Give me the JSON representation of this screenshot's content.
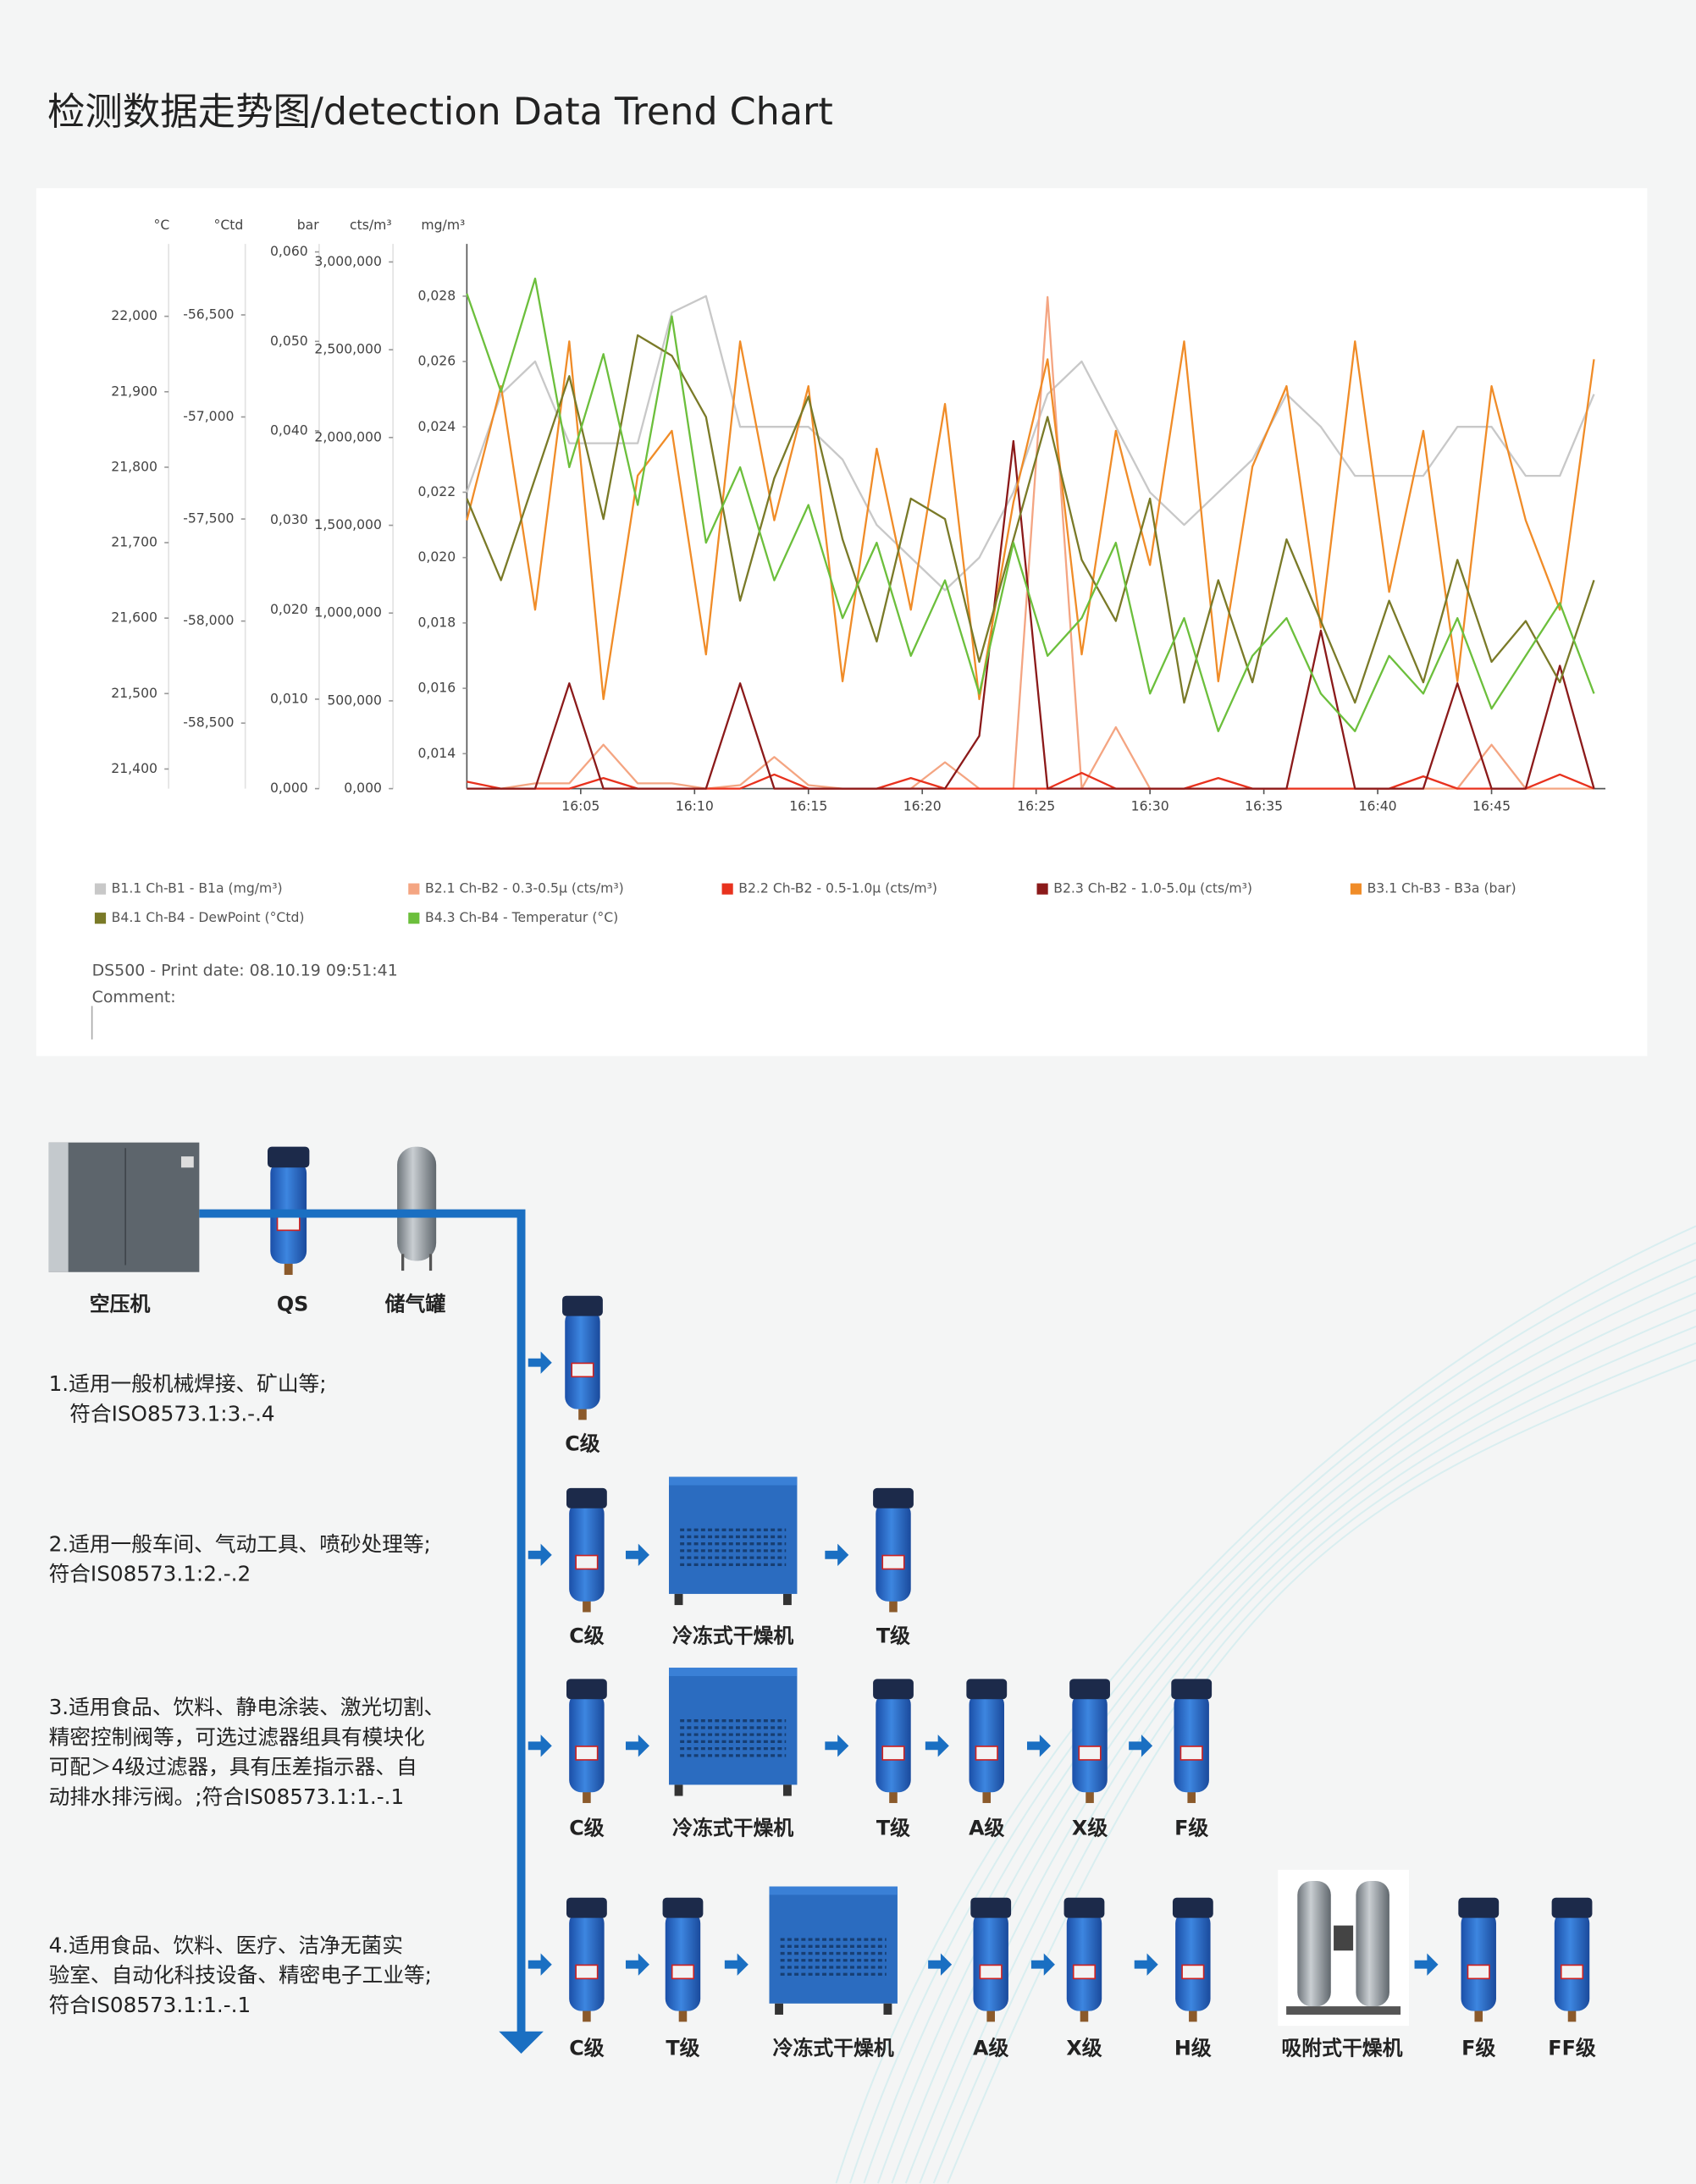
{
  "title": "检测数据走势图/detection Data Trend Chart",
  "chart_data": {
    "type": "line",
    "x": [
      960,
      961.5,
      963,
      964.5,
      966,
      967.5,
      969,
      970.5,
      972,
      973.5,
      975,
      976.5,
      978,
      979.5,
      981,
      982.5,
      984,
      985.5,
      987,
      988.5,
      990,
      991.5,
      993,
      994.5,
      996,
      997.5,
      999,
      1000.5,
      1002,
      1003.5,
      1005,
      1006.5,
      1008,
      1009.5
    ],
    "xlim": [
      960,
      1010
    ],
    "xticks": [
      {
        "value": 965,
        "label": "16:05"
      },
      {
        "value": 970,
        "label": "16:10"
      },
      {
        "value": 975,
        "label": "16:15"
      },
      {
        "value": 980,
        "label": "16:20"
      },
      {
        "value": 985,
        "label": "16:25"
      },
      {
        "value": 990,
        "label": "16:30"
      },
      {
        "value": 995,
        "label": "16:35"
      },
      {
        "value": 1000,
        "label": "16:40"
      },
      {
        "value": 1005,
        "label": "16:45"
      }
    ],
    "axes": [
      {
        "unit": "°C",
        "lim": [
          21.374,
          22.096
        ],
        "ticks": [
          {
            "value": 21.4,
            "label": "21,400"
          },
          {
            "value": 21.5,
            "label": "21,500"
          },
          {
            "value": 21.6,
            "label": "21,600"
          },
          {
            "value": 21.7,
            "label": "21,700"
          },
          {
            "value": 21.8,
            "label": "21,800"
          },
          {
            "value": 21.9,
            "label": "21,900"
          },
          {
            "value": 22.0,
            "label": "22,000"
          }
        ]
      },
      {
        "unit": "°Ctd",
        "lim": [
          -58.821,
          -56.152
        ],
        "ticks": [
          {
            "value": -58.5,
            "label": "-58,500"
          },
          {
            "value": -58.0,
            "label": "-58,000"
          },
          {
            "value": -57.5,
            "label": "-57,500"
          },
          {
            "value": -57.0,
            "label": "-57,000"
          },
          {
            "value": -56.5,
            "label": "-56,500"
          }
        ]
      },
      {
        "unit": "bar",
        "lim": [
          0,
          0.0609
        ],
        "ticks": [
          {
            "value": 0,
            "label": "0,000"
          },
          {
            "value": 0.01,
            "label": "0,010"
          },
          {
            "value": 0.02,
            "label": "0,020"
          },
          {
            "value": 0.03,
            "label": "0,030"
          },
          {
            "value": 0.04,
            "label": "0,040"
          },
          {
            "value": 0.05,
            "label": "0,050"
          },
          {
            "value": 0.06,
            "label": "0,060"
          }
        ]
      },
      {
        "unit": "cts/m³",
        "lim": [
          0,
          3103
        ],
        "ticks": [
          {
            "value": 0,
            "label": "0,000"
          },
          {
            "value": 500,
            "label": "500,000"
          },
          {
            "value": 1000,
            "label": "1,000,000"
          },
          {
            "value": 1500,
            "label": "1,500,000"
          },
          {
            "value": 2000,
            "label": "2,000,000"
          },
          {
            "value": 2500,
            "label": "2,500,000"
          },
          {
            "value": 3000,
            "label": "3,000,000"
          }
        ]
      },
      {
        "unit": "mg/m³",
        "lim": [
          0.01293,
          0.0296
        ],
        "ticks": [
          {
            "value": 0.014,
            "label": "0,014"
          },
          {
            "value": 0.016,
            "label": "0,016"
          },
          {
            "value": 0.018,
            "label": "0,018"
          },
          {
            "value": 0.02,
            "label": "0,020"
          },
          {
            "value": 0.022,
            "label": "0,022"
          },
          {
            "value": 0.024,
            "label": "0,024"
          },
          {
            "value": 0.026,
            "label": "0,026"
          },
          {
            "value": 0.028,
            "label": "0,028"
          }
        ]
      }
    ],
    "series": [
      {
        "name": "B1.1 Ch-B1 - B1a (mg/m³)",
        "color": "#c8c8c8",
        "axis": 4,
        "values": [
          0.022,
          0.025,
          0.026,
          0.0235,
          0.0235,
          0.0235,
          0.0275,
          0.028,
          0.024,
          0.024,
          0.024,
          0.023,
          0.021,
          0.02,
          0.019,
          0.02,
          0.022,
          0.025,
          0.026,
          0.024,
          0.022,
          0.021,
          0.022,
          0.023,
          0.025,
          0.024,
          0.0225,
          0.0225,
          0.0225,
          0.024,
          0.024,
          0.0225,
          0.0225,
          0.025
        ]
      },
      {
        "name": "B2.1 Ch-B2 - 0.3-0.5µ (cts/m³)",
        "color": "#f4a582",
        "axis": 3,
        "values": [
          0,
          0,
          30,
          30,
          250,
          30,
          30,
          0,
          20,
          180,
          20,
          0,
          0,
          0,
          150,
          0,
          0,
          2800,
          0,
          350,
          0,
          0,
          0,
          0,
          0,
          0,
          0,
          0,
          0,
          0,
          250,
          0,
          0,
          0
        ]
      },
      {
        "name": "B2.2 Ch-B2 - 0.5-1.0µ (cts/m³)",
        "color": "#e8321e",
        "axis": 3,
        "values": [
          40,
          0,
          0,
          0,
          60,
          0,
          0,
          0,
          0,
          80,
          0,
          0,
          0,
          60,
          0,
          0,
          0,
          0,
          90,
          0,
          0,
          0,
          60,
          0,
          0,
          0,
          0,
          0,
          70,
          0,
          0,
          0,
          80,
          0
        ]
      },
      {
        "name": "B2.3 Ch-B2 - 1.0-5.0µ (cts/m³)",
        "color": "#8b1a1a",
        "axis": 3,
        "values": [
          0,
          0,
          0,
          600,
          0,
          0,
          0,
          0,
          600,
          0,
          0,
          0,
          0,
          0,
          0,
          300,
          1980,
          0,
          0,
          0,
          0,
          0,
          0,
          0,
          0,
          900,
          0,
          0,
          0,
          600,
          0,
          0,
          700,
          0
        ]
      },
      {
        "name": "B3.1 Ch-B3 - B3a (bar)",
        "color": "#f08c28",
        "axis": 2,
        "values": [
          0.03,
          0.045,
          0.02,
          0.05,
          0.01,
          0.035,
          0.04,
          0.015,
          0.05,
          0.03,
          0.045,
          0.012,
          0.038,
          0.02,
          0.043,
          0.01,
          0.032,
          0.048,
          0.015,
          0.04,
          0.025,
          0.05,
          0.012,
          0.036,
          0.045,
          0.018,
          0.05,
          0.022,
          0.04,
          0.012,
          0.045,
          0.03,
          0.02,
          0.048
        ]
      },
      {
        "name": "B4.1 Ch-B4 - DewPoint (°Ctd)",
        "color": "#7a7a28",
        "axis": 1,
        "values": [
          -57.4,
          -57.8,
          -57.3,
          -56.8,
          -57.5,
          -56.6,
          -56.7,
          -57.0,
          -57.9,
          -57.3,
          -56.9,
          -57.6,
          -58.1,
          -57.4,
          -57.5,
          -58.2,
          -57.6,
          -57.0,
          -57.7,
          -58.0,
          -57.4,
          -58.4,
          -57.8,
          -58.3,
          -57.6,
          -58.0,
          -58.4,
          -57.9,
          -58.3,
          -57.7,
          -58.2,
          -58.0,
          -58.3,
          -57.8
        ]
      },
      {
        "name": "B4.3 Ch-B4 - Temperatur (°C)",
        "color": "#6cbf3c",
        "axis": 0,
        "values": [
          22.03,
          21.9,
          22.05,
          21.8,
          21.95,
          21.75,
          22.0,
          21.7,
          21.8,
          21.65,
          21.75,
          21.6,
          21.7,
          21.55,
          21.65,
          21.5,
          21.7,
          21.55,
          21.6,
          21.7,
          21.5,
          21.6,
          21.45,
          21.55,
          21.6,
          21.5,
          21.45,
          21.55,
          21.5,
          21.6,
          21.48,
          21.55,
          21.62,
          21.5
        ]
      }
    ],
    "footer": [
      "DS500 - Print date: 08.10.19 09:51:41",
      "Comment:"
    ]
  },
  "diagram": {
    "top": [
      "空压机",
      "QS",
      "储气罐"
    ],
    "rows": [
      {
        "text": [
          "1.适用一般机械焊接、矿山等;",
          "符合ISO8573.1:3.-.4"
        ],
        "items": [
          "C级"
        ]
      },
      {
        "text": [
          "2.适用一般车间、气动工具、喷砂处理等;",
          "符合IS08573.1:2.-.2"
        ],
        "items": [
          "C级",
          "冷冻式干燥机",
          "T级"
        ]
      },
      {
        "text": [
          "3.适用食品、饮料、静电涂装、激光切割、",
          "精密控制阀等，可选过滤器组具有模块化",
          "可配＞4级过滤器，具有压差指示器、自",
          "动排水排污阀。;符合IS08573.1:1.-.1"
        ],
        "items": [
          "C级",
          "冷冻式干燥机",
          "T级",
          "A级",
          "X级",
          "F级"
        ]
      },
      {
        "text": [
          "4.适用食品、饮料、医疗、洁净无菌实",
          "验室、自动化科技设备、精密电子工业等;",
          "符合IS08573.1:1.-.1"
        ],
        "items": [
          "C级",
          "T级",
          "冷冻式干燥机",
          "A级",
          "X级",
          "H级",
          "吸附式干燥机",
          "F级",
          "FF级"
        ]
      }
    ]
  }
}
